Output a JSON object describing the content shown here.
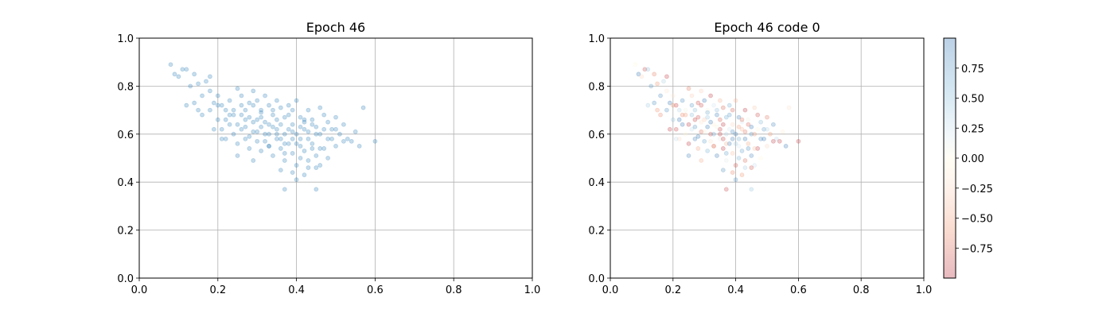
{
  "chart_data": [
    {
      "type": "scatter",
      "title": "Epoch 46",
      "xlim": [
        0.0,
        1.0
      ],
      "ylim": [
        0.0,
        1.0
      ],
      "x_ticks": [
        "0.0",
        "0.2",
        "0.4",
        "0.6",
        "0.8",
        "1.0"
      ],
      "y_ticks": [
        "0.0",
        "0.2",
        "0.4",
        "0.6",
        "0.8",
        "1.0"
      ],
      "grid": true,
      "point_color": "#1f77b4",
      "point_alpha": 0.25,
      "points": [
        [
          0.08,
          0.89
        ],
        [
          0.09,
          0.85
        ],
        [
          0.1,
          0.84
        ],
        [
          0.11,
          0.87
        ],
        [
          0.12,
          0.87
        ],
        [
          0.13,
          0.8
        ],
        [
          0.14,
          0.85
        ],
        [
          0.15,
          0.81
        ],
        [
          0.16,
          0.76
        ],
        [
          0.17,
          0.82
        ],
        [
          0.18,
          0.84
        ],
        [
          0.18,
          0.78
        ],
        [
          0.19,
          0.73
        ],
        [
          0.2,
          0.76
        ],
        [
          0.21,
          0.72
        ],
        [
          0.22,
          0.7
        ],
        [
          0.23,
          0.74
        ],
        [
          0.24,
          0.68
        ],
        [
          0.25,
          0.79
        ],
        [
          0.26,
          0.72
        ],
        [
          0.27,
          0.7
        ],
        [
          0.28,
          0.73
        ],
        [
          0.29,
          0.78
        ],
        [
          0.3,
          0.74
        ],
        [
          0.31,
          0.7
        ],
        [
          0.32,
          0.76
        ],
        [
          0.33,
          0.72
        ],
        [
          0.34,
          0.68
        ],
        [
          0.35,
          0.74
        ],
        [
          0.36,
          0.71
        ],
        [
          0.37,
          0.67
        ],
        [
          0.38,
          0.72
        ],
        [
          0.39,
          0.7
        ],
        [
          0.4,
          0.74
        ],
        [
          0.41,
          0.67
        ],
        [
          0.42,
          0.65
        ],
        [
          0.43,
          0.7
        ],
        [
          0.44,
          0.66
        ],
        [
          0.45,
          0.63
        ],
        [
          0.46,
          0.71
        ],
        [
          0.47,
          0.68
        ],
        [
          0.48,
          0.65
        ],
        [
          0.49,
          0.62
        ],
        [
          0.5,
          0.67
        ],
        [
          0.51,
          0.6
        ],
        [
          0.52,
          0.64
        ],
        [
          0.53,
          0.58
        ],
        [
          0.54,
          0.57
        ],
        [
          0.55,
          0.61
        ],
        [
          0.56,
          0.55
        ],
        [
          0.57,
          0.71
        ],
        [
          0.6,
          0.57
        ],
        [
          0.12,
          0.72
        ],
        [
          0.14,
          0.73
        ],
        [
          0.15,
          0.7
        ],
        [
          0.16,
          0.68
        ],
        [
          0.18,
          0.7
        ],
        [
          0.2,
          0.66
        ],
        [
          0.21,
          0.62
        ],
        [
          0.22,
          0.58
        ],
        [
          0.23,
          0.64
        ],
        [
          0.24,
          0.6
        ],
        [
          0.25,
          0.56
        ],
        [
          0.26,
          0.62
        ],
        [
          0.27,
          0.58
        ],
        [
          0.28,
          0.54
        ],
        [
          0.29,
          0.61
        ],
        [
          0.3,
          0.57
        ],
        [
          0.31,
          0.53
        ],
        [
          0.32,
          0.6
        ],
        [
          0.33,
          0.55
        ],
        [
          0.34,
          0.51
        ],
        [
          0.35,
          0.58
        ],
        [
          0.36,
          0.54
        ],
        [
          0.37,
          0.49
        ],
        [
          0.38,
          0.56
        ],
        [
          0.39,
          0.52
        ],
        [
          0.4,
          0.47
        ],
        [
          0.41,
          0.58
        ],
        [
          0.42,
          0.53
        ],
        [
          0.43,
          0.49
        ],
        [
          0.44,
          0.56
        ],
        [
          0.45,
          0.51
        ],
        [
          0.46,
          0.47
        ],
        [
          0.47,
          0.54
        ],
        [
          0.48,
          0.5
        ],
        [
          0.49,
          0.58
        ],
        [
          0.5,
          0.55
        ],
        [
          0.37,
          0.37
        ],
        [
          0.45,
          0.37
        ],
        [
          0.4,
          0.41
        ],
        [
          0.39,
          0.44
        ],
        [
          0.42,
          0.43
        ],
        [
          0.36,
          0.45
        ],
        [
          0.43,
          0.46
        ],
        [
          0.27,
          0.66
        ],
        [
          0.29,
          0.65
        ],
        [
          0.31,
          0.63
        ],
        [
          0.33,
          0.64
        ],
        [
          0.35,
          0.62
        ],
        [
          0.37,
          0.6
        ],
        [
          0.39,
          0.61
        ],
        [
          0.41,
          0.63
        ],
        [
          0.43,
          0.61
        ],
        [
          0.45,
          0.6
        ],
        [
          0.26,
          0.68
        ],
        [
          0.28,
          0.67
        ],
        [
          0.3,
          0.66
        ],
        [
          0.32,
          0.65
        ],
        [
          0.34,
          0.63
        ],
        [
          0.36,
          0.64
        ],
        [
          0.38,
          0.62
        ],
        [
          0.4,
          0.6
        ],
        [
          0.42,
          0.62
        ],
        [
          0.44,
          0.64
        ],
        [
          0.31,
          0.69
        ],
        [
          0.33,
          0.6
        ],
        [
          0.35,
          0.66
        ],
        [
          0.37,
          0.56
        ],
        [
          0.39,
          0.58
        ],
        [
          0.41,
          0.55
        ],
        [
          0.25,
          0.64
        ],
        [
          0.24,
          0.7
        ],
        [
          0.22,
          0.66
        ],
        [
          0.26,
          0.76
        ],
        [
          0.29,
          0.72
        ],
        [
          0.34,
          0.7
        ],
        [
          0.38,
          0.68
        ],
        [
          0.42,
          0.66
        ],
        [
          0.46,
          0.6
        ],
        [
          0.48,
          0.58
        ],
        [
          0.5,
          0.62
        ],
        [
          0.52,
          0.57
        ],
        [
          0.3,
          0.61
        ],
        [
          0.28,
          0.59
        ],
        [
          0.32,
          0.57
        ],
        [
          0.36,
          0.58
        ],
        [
          0.4,
          0.56
        ],
        [
          0.44,
          0.54
        ],
        [
          0.2,
          0.72
        ],
        [
          0.23,
          0.68
        ],
        [
          0.27,
          0.63
        ],
        [
          0.31,
          0.67
        ],
        [
          0.35,
          0.6
        ],
        [
          0.39,
          0.64
        ],
        [
          0.43,
          0.58
        ],
        [
          0.47,
          0.62
        ],
        [
          0.19,
          0.62
        ],
        [
          0.21,
          0.58
        ],
        [
          0.25,
          0.51
        ],
        [
          0.29,
          0.49
        ],
        [
          0.33,
          0.55
        ],
        [
          0.37,
          0.52
        ],
        [
          0.41,
          0.5
        ],
        [
          0.45,
          0.46
        ],
        [
          0.46,
          0.54
        ]
      ]
    },
    {
      "type": "scatter",
      "title": "Epoch 46 code 0",
      "xlim": [
        0.0,
        1.0
      ],
      "ylim": [
        0.0,
        1.0
      ],
      "x_ticks": [
        "0.0",
        "0.2",
        "0.4",
        "0.6",
        "0.8",
        "1.0"
      ],
      "y_ticks": [
        "0.0",
        "0.2",
        "0.4",
        "0.6",
        "0.8",
        "1.0"
      ],
      "grid": true,
      "colormap": "RdBu",
      "point_alpha": 0.25,
      "colorbar": {
        "range": [
          -1.0,
          1.0
        ],
        "ticks": [
          "-0.75",
          "-0.50",
          "-0.25",
          "0.00",
          "0.25",
          "0.50",
          "0.75"
        ],
        "tick_values": [
          -0.75,
          -0.5,
          -0.25,
          0.0,
          0.25,
          0.5,
          0.75
        ]
      }
    }
  ]
}
